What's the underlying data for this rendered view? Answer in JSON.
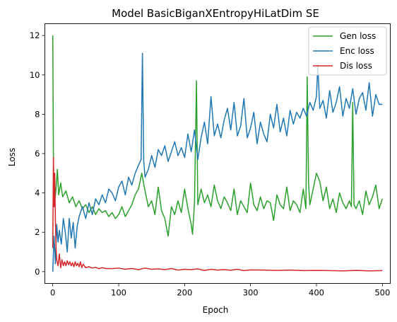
{
  "chart_data": {
    "type": "line",
    "title": "Model BasicBiganXEntropyHiLatDim SE",
    "xlabel": "Epoch",
    "ylabel": "Loss",
    "xlim": [
      -12,
      512
    ],
    "ylim": [
      -0.6,
      12.6
    ],
    "xticks": [
      0,
      100,
      200,
      300,
      400,
      500
    ],
    "yticks": [
      0,
      2,
      4,
      6,
      8,
      10,
      12
    ],
    "grid": false,
    "legend": "top-right",
    "series": [
      {
        "name": "Gen loss",
        "color": "#2ca02c",
        "x": [
          0,
          1,
          2,
          3,
          5,
          7,
          9,
          12,
          15,
          20,
          25,
          30,
          35,
          40,
          45,
          50,
          55,
          60,
          65,
          70,
          75,
          80,
          85,
          90,
          95,
          100,
          105,
          110,
          115,
          120,
          125,
          130,
          135,
          140,
          145,
          150,
          155,
          160,
          165,
          170,
          175,
          180,
          185,
          190,
          195,
          200,
          205,
          210,
          212,
          215,
          218,
          220,
          225,
          230,
          235,
          240,
          245,
          250,
          255,
          260,
          265,
          270,
          275,
          280,
          285,
          290,
          295,
          300,
          305,
          310,
          315,
          320,
          325,
          330,
          335,
          340,
          345,
          350,
          355,
          360,
          365,
          370,
          375,
          380,
          384,
          386,
          388,
          390,
          395,
          400,
          405,
          410,
          415,
          420,
          425,
          430,
          435,
          440,
          445,
          450,
          453,
          455,
          457,
          460,
          465,
          470,
          475,
          480,
          485,
          490,
          495,
          500
        ],
        "y": [
          12.0,
          5.8,
          3.4,
          3.6,
          4.2,
          5.2,
          3.9,
          4.5,
          3.8,
          4.1,
          3.5,
          3.8,
          3.3,
          3.6,
          3.2,
          3.4,
          3.0,
          3.3,
          2.9,
          3.2,
          3.0,
          3.1,
          2.8,
          3.0,
          2.7,
          2.9,
          3.3,
          2.8,
          3.1,
          3.4,
          3.9,
          4.2,
          5.0,
          4.1,
          3.3,
          3.6,
          2.9,
          4.3,
          3.1,
          2.7,
          1.8,
          3.3,
          2.9,
          3.6,
          3.0,
          4.2,
          3.2,
          2.4,
          1.9,
          3.5,
          9.7,
          3.4,
          4.2,
          3.5,
          3.9,
          3.3,
          4.4,
          3.6,
          3.2,
          3.8,
          3.5,
          3.1,
          4.2,
          2.9,
          3.6,
          3.3,
          3.0,
          4.5,
          3.4,
          3.1,
          3.8,
          3.2,
          3.6,
          3.5,
          2.6,
          3.9,
          3.4,
          3.2,
          4.3,
          3.1,
          3.6,
          3.4,
          3.0,
          4.2,
          3.2,
          9.9,
          4.5,
          3.4,
          4.2,
          5.0,
          4.6,
          3.6,
          4.3,
          3.2,
          3.7,
          3.0,
          4.0,
          3.5,
          3.2,
          3.6,
          3.3,
          8.6,
          3.4,
          3.2,
          3.6,
          2.9,
          4.1,
          3.4,
          3.8,
          4.4,
          3.2,
          3.7
        ]
      },
      {
        "name": "Enc loss",
        "color": "#1f77b4",
        "x": [
          0,
          2,
          4,
          6,
          8,
          10,
          13,
          16,
          19,
          22,
          25,
          28,
          31,
          34,
          37,
          40,
          45,
          50,
          55,
          60,
          65,
          70,
          75,
          80,
          85,
          90,
          95,
          100,
          105,
          110,
          115,
          120,
          125,
          130,
          134,
          136,
          138,
          140,
          145,
          150,
          155,
          160,
          165,
          170,
          175,
          180,
          185,
          190,
          195,
          200,
          205,
          210,
          215,
          220,
          225,
          230,
          235,
          240,
          245,
          250,
          255,
          260,
          265,
          270,
          275,
          280,
          285,
          290,
          295,
          300,
          305,
          310,
          315,
          320,
          325,
          330,
          335,
          340,
          345,
          350,
          355,
          360,
          365,
          370,
          375,
          380,
          385,
          390,
          395,
          400,
          402,
          405,
          410,
          415,
          420,
          425,
          430,
          435,
          440,
          445,
          450,
          455,
          460,
          465,
          470,
          475,
          480,
          485,
          490,
          495,
          500
        ],
        "y": [
          0.0,
          1.8,
          0.4,
          2.4,
          1.5,
          2.1,
          1.4,
          2.7,
          2.0,
          1.0,
          2.7,
          1.7,
          2.5,
          1.2,
          2.3,
          2.8,
          3.3,
          2.7,
          3.5,
          2.9,
          3.7,
          3.4,
          3.9,
          3.5,
          4.2,
          4.0,
          3.6,
          4.3,
          4.6,
          3.9,
          4.8,
          4.4,
          5.0,
          5.4,
          5.7,
          11.1,
          5.6,
          4.8,
          5.2,
          5.9,
          5.3,
          6.2,
          5.9,
          6.4,
          5.6,
          6.1,
          6.6,
          5.9,
          6.3,
          5.8,
          7.0,
          6.1,
          7.2,
          5.7,
          6.8,
          7.6,
          6.5,
          8.9,
          6.9,
          7.5,
          6.8,
          7.7,
          8.3,
          7.2,
          8.6,
          6.9,
          7.4,
          8.8,
          6.8,
          7.3,
          8.1,
          6.5,
          7.6,
          7.0,
          6.6,
          8.0,
          7.3,
          8.5,
          7.1,
          7.8,
          6.9,
          8.2,
          7.5,
          8.1,
          7.8,
          8.3,
          7.9,
          8.6,
          8.2,
          8.9,
          10.5,
          8.3,
          8.7,
          7.8,
          9.2,
          8.1,
          8.6,
          9.4,
          7.9,
          8.8,
          8.3,
          9.3,
          8.0,
          8.8,
          9.1,
          8.2,
          9.6,
          7.9,
          9.0,
          8.5,
          8.5
        ]
      },
      {
        "name": "Dis loss",
        "color": "#d62728",
        "x": [
          0,
          1,
          2,
          3,
          4,
          5,
          6,
          8,
          10,
          12,
          14,
          16,
          18,
          20,
          22,
          24,
          26,
          28,
          30,
          32,
          34,
          36,
          38,
          40,
          42,
          44,
          46,
          50,
          55,
          60,
          65,
          70,
          75,
          80,
          90,
          100,
          110,
          120,
          130,
          140,
          150,
          160,
          170,
          180,
          190,
          200,
          210,
          220,
          230,
          240,
          250,
          260,
          270,
          280,
          290,
          300,
          320,
          340,
          360,
          380,
          400,
          420,
          440,
          460,
          480,
          500
        ],
        "y": [
          1.2,
          5.8,
          3.3,
          5.0,
          2.6,
          1.2,
          0.6,
          0.3,
          0.9,
          0.2,
          0.6,
          0.3,
          0.5,
          0.3,
          0.55,
          0.35,
          0.5,
          0.3,
          0.45,
          0.25,
          0.5,
          0.3,
          0.42,
          0.25,
          0.5,
          0.2,
          0.38,
          0.2,
          0.25,
          0.18,
          0.22,
          0.15,
          0.2,
          0.16,
          0.15,
          0.18,
          0.12,
          0.16,
          0.1,
          0.18,
          0.12,
          0.14,
          0.1,
          0.16,
          0.08,
          0.12,
          0.1,
          0.14,
          0.06,
          0.12,
          0.08,
          0.1,
          0.07,
          0.12,
          0.05,
          0.09,
          0.08,
          0.06,
          0.08,
          0.05,
          0.06,
          0.05,
          0.04,
          0.06,
          0.04,
          0.05
        ]
      }
    ]
  }
}
